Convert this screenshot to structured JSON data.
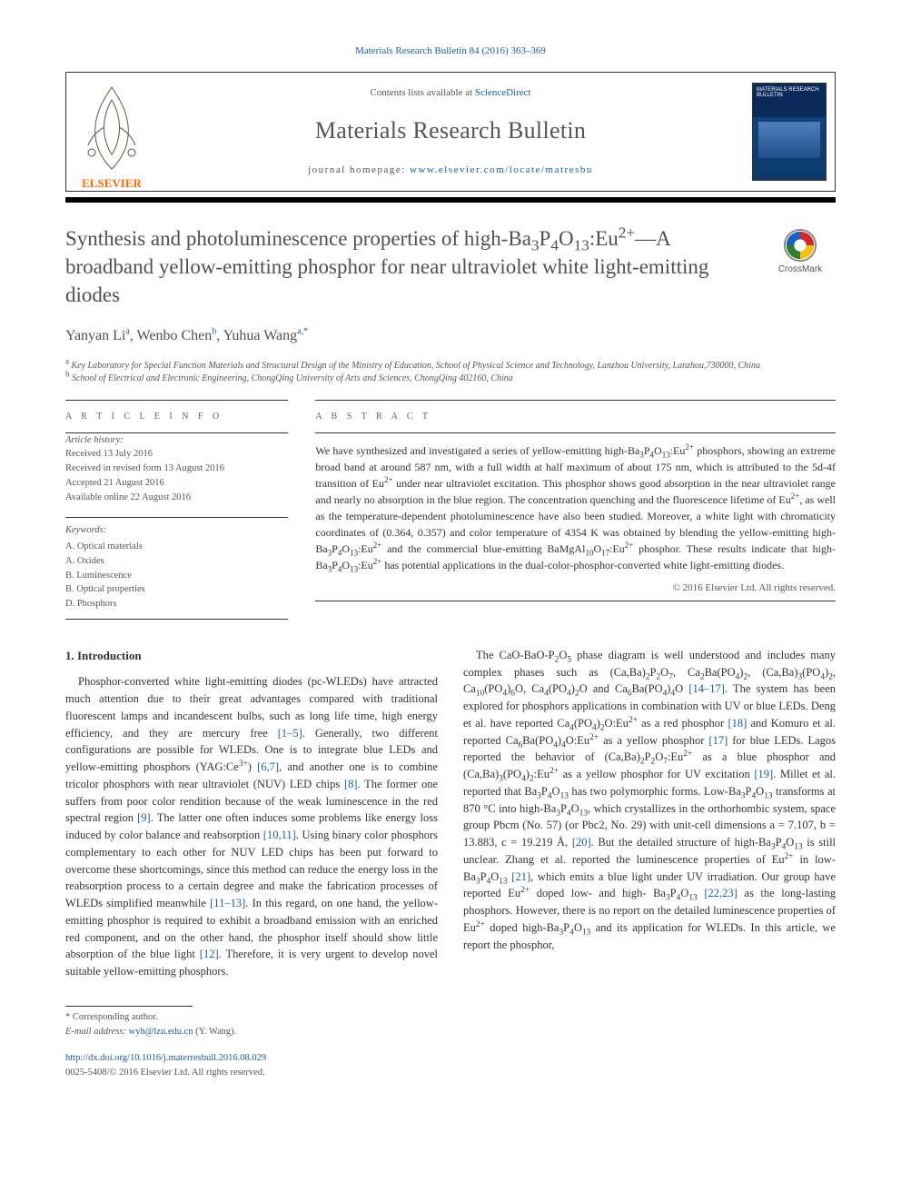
{
  "top_link": {
    "label": "Materials Research Bulletin 84 (2016) 363–369",
    "href": "#"
  },
  "header": {
    "contents_prefix": "Contents lists available at ",
    "contents_link": "ScienceDirect",
    "journal": "Materials Research Bulletin",
    "homepage_prefix": "journal homepage: ",
    "homepage_url": "www.elsevier.com/locate/matresbu",
    "publisher": "ELSEVIER",
    "cover_caption": "MATERIALS RESEARCH BULLETIN"
  },
  "crossmark_label": "CrossMark",
  "title_html": "Synthesis and photoluminescence properties of high-Ba<sub>3</sub>P<sub>4</sub>O<sub>13</sub>:Eu<sup>2+</sup>—A broadband yellow-emitting phosphor for near ultraviolet white light-emitting diodes",
  "authors_html": "Yanyan Li<sup>a</sup>, Wenbo Chen<sup>b</sup>, Yuhua Wang<sup>a,*</sup>",
  "affiliations": [
    {
      "marker": "a",
      "text": "Key Laboratory for Special Function Materials and Structural Design of the Ministry of Education, School of Physical Science and Technology, Lanzhou University, Lanzhou,730000, China"
    },
    {
      "marker": "b",
      "text": "School of Electrical and Electronic Engineering, ChongQing University of Arts and Sciences, ChongQing 402160, China"
    }
  ],
  "article_info": {
    "label": "A R T I C L E   I N F O",
    "history_heading": "Article history:",
    "history": [
      "Received 13 July 2016",
      "Received in revised form 13 August 2016",
      "Accepted 21 August 2016",
      "Available online 22 August 2016"
    ],
    "keywords_heading": "Keywords:",
    "keywords": [
      "A. Optical materials",
      "A. Oxides",
      "B. Luminescence",
      "B. Optical properties",
      "D. Phosphors"
    ]
  },
  "abstract": {
    "label": "A B S T R A C T",
    "text_html": "We have synthesized and investigated a series of yellow-emitting high-Ba<sub>3</sub>P<sub>4</sub>O<sub>13</sub>:Eu<sup>2+</sup> phosphors, showing an extreme broad band at around 587 nm, with a full width at half maximum of about 175 nm, which is attributed to the 5d-4f transition of Eu<sup>2+</sup> under near ultraviolet excitation. This phosphor shows good absorption in the near ultraviolet range and nearly no absorption in the blue region. The concentration quenching and the fluorescence lifetime of Eu<sup>2+</sup>, as well as the temperature-dependent photoluminescence have also been studied. Moreover, a white light with chromaticity coordinates of (0.364, 0.357) and color temperature of 4354 K was obtained by blending the yellow-emitting high-Ba<sub>3</sub>P<sub>4</sub>O<sub>13</sub>:Eu<sup>2+</sup> and the commercial blue-emitting BaMgAl<sub>10</sub>O<sub>17</sub>:Eu<sup>2+</sup> phosphor. These results indicate that high-Ba<sub>3</sub>P<sub>4</sub>O<sub>13</sub>:Eu<sup>2+</sup> has potential applications in the dual-color-phosphor-converted white light-emitting diodes.",
    "copyright": "© 2016 Elsevier Ltd. All rights reserved."
  },
  "section_heading": "1. Introduction",
  "paragraphs_html": [
    "Phosphor-converted white light-emitting diodes (pc-WLEDs) have attracted much attention due to their great advantages compared with traditional fluorescent lamps and incandescent bulbs, such as long life time, high energy efficiency, and they are mercury free <span class=\"cite\">[1–5]</span>. Generally, two different configurations are possible for WLEDs. One is to integrate blue LEDs and yellow-emitting phosphors (YAG:Ce<sup>3+</sup>) <span class=\"cite\">[6,7]</span>, and another one is to combine tricolor phosphors with near ultraviolet (NUV) LED chips <span class=\"cite\">[8]</span>. The former one suffers from poor color rendition because of the weak luminescence in the red spectral region <span class=\"cite\">[9]</span>. The latter one often induces some problems like energy loss induced by color balance and reabsorption <span class=\"cite\">[10,11]</span>. Using binary color phosphors complementary to each other for NUV LED chips has been put forward to overcome these shortcomings, since this method can reduce the energy loss in the reabsorption process to a certain degree and make the fabrication processes of WLEDs simplified meanwhile <span class=\"cite\">[11–13]</span>. In this regard, on one hand, the yellow-emitting phosphor is required to exhibit a broadband emission with an enriched red component, and on the other hand, the phosphor itself should show little absorption of the blue light <span class=\"cite\">[12]</span>. Therefore, it is very urgent to develop novel suitable yellow-emitting phosphors.",
    "The CaO-BaO-P<sub>2</sub>O<sub>5</sub> phase diagram is well understood and includes many complex phases such as (Ca,Ba)<sub>2</sub>P<sub>2</sub>O<sub>7</sub>, Ca<sub>2</sub>Ba(PO<sub>4</sub>)<sub>2</sub>, (Ca,Ba)<sub>3</sub>(PO<sub>4</sub>)<sub>2</sub>, Ca<sub>10</sub>(PO<sub>4</sub>)<sub>6</sub>O, Ca<sub>4</sub>(PO<sub>4</sub>)<sub>2</sub>O and Ca<sub>6</sub>Ba(PO<sub>4</sub>)<sub>4</sub>O <span class=\"cite\">[14–17]</span>. The system has been explored for phosphors applications in combination with UV or blue LEDs. Deng et al. have reported Ca<sub>4</sub>(PO<sub>4</sub>)<sub>2</sub>O:Eu<sup>2+</sup> as a red phosphor <span class=\"cite\">[18]</span> and Komuro et al. reported Ca<sub>6</sub>Ba(PO<sub>4</sub>)<sub>4</sub>O:Eu<sup>2+</sup> as a yellow phosphor <span class=\"cite\">[17]</span> for blue LEDs. Lagos reported the behavior of (Ca,Ba)<sub>2</sub>P<sub>2</sub>O<sub>7</sub>:Eu<sup>2+</sup> as a blue phosphor and (Ca,Ba)<sub>3</sub>(PO<sub>4</sub>)<sub>2</sub>:Eu<sup>2+</sup> as a yellow phosphor for UV excitation <span class=\"cite\">[19]</span>. Millet et al. reported that Ba<sub>3</sub>P<sub>4</sub>O<sub>13</sub> has two polymorphic forms. Low-Ba<sub>3</sub>P<sub>4</sub>O<sub>13</sub> transforms at 870 °C into high-Ba<sub>3</sub>P<sub>4</sub>O<sub>13</sub>, which crystallizes in the orthorhombic system, space group Pbcm (No. 57) (or Pbc2, No. 29) with unit-cell dimensions a = 7.107, b = 13.883, c = 19.219 Å, <span class=\"cite\">[20]</span>. But the detailed structure of high-Ba<sub>3</sub>P<sub>4</sub>O<sub>13</sub> is still unclear. Zhang et al. reported the luminescence properties of Eu<sup>2+</sup> in low-Ba<sub>3</sub>P<sub>4</sub>O<sub>13</sub> <span class=\"cite\">[21]</span>, which emits a blue light under UV irradiation. Our group have reported Eu<sup>2+</sup> doped low- and high- Ba<sub>3</sub>P<sub>4</sub>O<sub>13</sub> <span class=\"cite\">[22,23]</span> as the long-lasting phosphors. However, there is no report on the detailed luminescence properties of Eu<sup>2+</sup> doped high-Ba<sub>3</sub>P<sub>4</sub>O<sub>13</sub> and its application for WLEDs. In this article, we report the phosphor,"
  ],
  "footnote": {
    "star": "* Corresponding author.",
    "email_label": "E-mail address: ",
    "email": "wyh@lzu.edu.cn",
    "email_suffix": " (Y. Wang)."
  },
  "doi": {
    "url": "http://dx.doi.org/10.1016/j.materresbull.2016.08.029",
    "issn_line": "0025-5408/© 2016 Elsevier Ltd. All rights reserved."
  },
  "colors": {
    "link": "#1a5c9e",
    "text": "#333333",
    "muted": "#555555",
    "rule": "#333333",
    "elsevier_orange": "#ff6a00"
  }
}
